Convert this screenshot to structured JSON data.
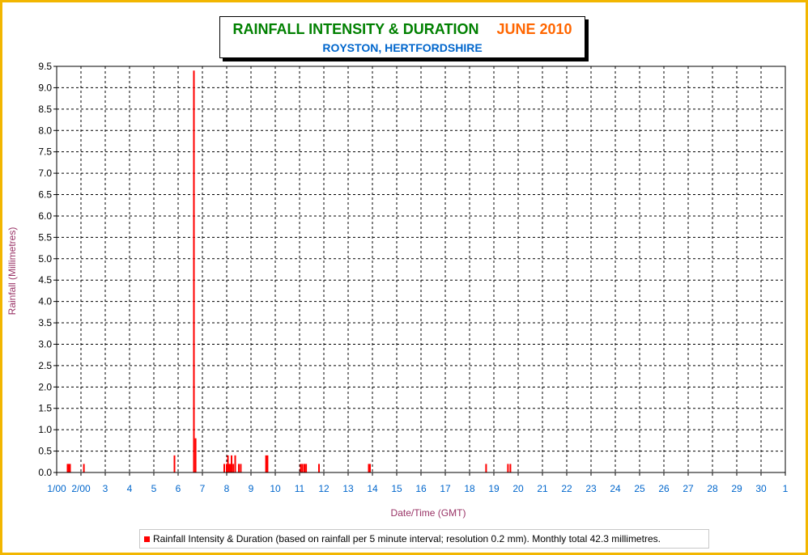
{
  "chart_data": {
    "type": "bar",
    "title": "RAINFALL INTENSITY & DURATION",
    "title_month": "JUNE 2010",
    "subtitle": "ROYSTON, HERTFORDSHIRE",
    "xlabel": "Date/Time (GMT)",
    "ylabel": "Rainfall (Millimetres)",
    "ylim": [
      0,
      9.5
    ],
    "yticks": [
      "0.0",
      "0.5",
      "1.0",
      "1.5",
      "2.0",
      "2.5",
      "3.0",
      "3.5",
      "4.0",
      "4.5",
      "5.0",
      "5.5",
      "6.0",
      "6.5",
      "7.0",
      "7.5",
      "8.0",
      "8.5",
      "9.0",
      "9.5"
    ],
    "xlim": [
      1,
      31
    ],
    "xticks": [
      "1/00",
      "2/00",
      "3",
      "4",
      "5",
      "6",
      "7",
      "8",
      "9",
      "10",
      "11",
      "12",
      "13",
      "14",
      "15",
      "16",
      "17",
      "18",
      "19",
      "20",
      "21",
      "22",
      "23",
      "24",
      "25",
      "26",
      "27",
      "28",
      "29",
      "30",
      "1"
    ],
    "grid": true,
    "legend_position": "bottom",
    "colors": {
      "series": "#ff0000",
      "frame": "#f2b600",
      "title": "#008000",
      "month": "#ff6600",
      "subtitle": "#0066cc",
      "axis_label": "#993366"
    },
    "series": [
      {
        "name": "Rainfall Intensity & Duration (based on rainfall per 5 minute interval; resolution 0.2 mm). Monthly total 42.3 millimetres.",
        "points": [
          {
            "x": 1.45,
            "y": 0.2
          },
          {
            "x": 1.5,
            "y": 0.2
          },
          {
            "x": 1.55,
            "y": 0.2
          },
          {
            "x": 2.12,
            "y": 0.2
          },
          {
            "x": 5.85,
            "y": 0.4
          },
          {
            "x": 6.65,
            "y": 9.4
          },
          {
            "x": 6.72,
            "y": 0.8
          },
          {
            "x": 7.9,
            "y": 0.2
          },
          {
            "x": 8.0,
            "y": 0.2
          },
          {
            "x": 8.05,
            "y": 0.4
          },
          {
            "x": 8.1,
            "y": 0.2
          },
          {
            "x": 8.15,
            "y": 0.2
          },
          {
            "x": 8.2,
            "y": 0.4
          },
          {
            "x": 8.27,
            "y": 0.2
          },
          {
            "x": 8.35,
            "y": 0.4
          },
          {
            "x": 8.5,
            "y": 0.2
          },
          {
            "x": 8.58,
            "y": 0.2
          },
          {
            "x": 9.62,
            "y": 0.4
          },
          {
            "x": 9.68,
            "y": 0.4
          },
          {
            "x": 11.05,
            "y": 0.2
          },
          {
            "x": 11.12,
            "y": 0.2
          },
          {
            "x": 11.2,
            "y": 0.2
          },
          {
            "x": 11.27,
            "y": 0.2
          },
          {
            "x": 11.8,
            "y": 0.2
          },
          {
            "x": 13.85,
            "y": 0.2
          },
          {
            "x": 13.9,
            "y": 0.2
          },
          {
            "x": 18.68,
            "y": 0.2
          },
          {
            "x": 19.58,
            "y": 0.2
          },
          {
            "x": 19.68,
            "y": 0.2
          }
        ]
      }
    ]
  }
}
